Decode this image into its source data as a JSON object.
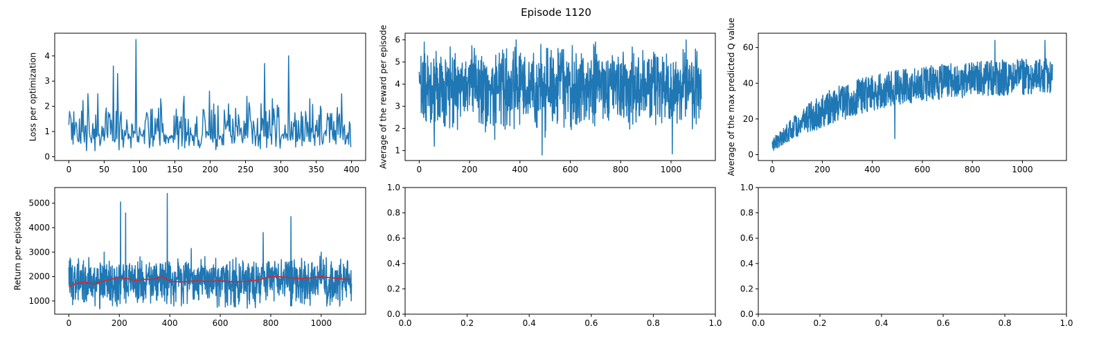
{
  "figure": {
    "suptitle": "Episode 1120",
    "colors": {
      "series": "#1f77b4",
      "average": "#d62728",
      "axes": "#000000",
      "background": "#ffffff"
    }
  },
  "chart_data": [
    {
      "type": "line",
      "title": "",
      "xlabel": "",
      "ylabel": "Loss per optimization",
      "xlim": [
        -20,
        420
      ],
      "ylim": [
        -0.15,
        4.9
      ],
      "xticks": [
        0,
        50,
        100,
        150,
        200,
        250,
        300,
        350,
        400
      ],
      "yticks": [
        0,
        1,
        2,
        3,
        4
      ],
      "grid": false,
      "series": [
        {
          "color": "#1f77b4",
          "x_range": [
            0,
            399
          ],
          "points": 400,
          "baseline": 0.9,
          "min": 0.15,
          "max": 2.3,
          "peaks": [
            [
              1,
              1.8
            ],
            [
              27,
              2.5
            ],
            [
              41,
              2.5
            ],
            [
              63,
              3.6
            ],
            [
              69,
              3.3
            ],
            [
              95,
              4.65
            ],
            [
              130,
              2.3
            ],
            [
              163,
              2.4
            ],
            [
              199,
              2.6
            ],
            [
              226,
              2.1
            ],
            [
              252,
              2.4
            ],
            [
              277,
              3.7
            ],
            [
              288,
              2.3
            ],
            [
              311,
              4.0
            ],
            [
              341,
              2.3
            ],
            [
              386,
              2.5
            ]
          ]
        }
      ]
    },
    {
      "type": "line",
      "title": "",
      "xlabel": "",
      "ylabel": "Average of the reward per episode",
      "xlim": [
        -56,
        1176
      ],
      "ylim": [
        0.55,
        6.3
      ],
      "xticks": [
        0,
        200,
        400,
        600,
        800,
        1000
      ],
      "yticks": [
        1,
        2,
        3,
        4,
        5,
        6
      ],
      "grid": false,
      "series": [
        {
          "color": "#1f77b4",
          "x_range": [
            0,
            1120
          ],
          "points": 1121,
          "baseline": 3.9,
          "min": 1.8,
          "max": 5.9,
          "peaks": [
            [
              20,
              5.9
            ],
            [
              60,
              1.2
            ],
            [
              300,
              1.5
            ],
            [
              385,
              6.0
            ],
            [
              488,
              0.8
            ],
            [
              500,
              1.6
            ],
            [
              700,
              5.9
            ],
            [
              1005,
              0.85
            ],
            [
              1060,
              6.0
            ]
          ]
        }
      ]
    },
    {
      "type": "line",
      "title": "",
      "xlabel": "",
      "ylabel": "Average of the max predicted Q value",
      "xlim": [
        -56,
        1176
      ],
      "ylim": [
        -3.3,
        68
      ],
      "xticks": [
        0,
        200,
        400,
        600,
        800,
        1000
      ],
      "yticks": [
        0,
        20,
        40,
        60
      ],
      "grid": false,
      "series": [
        {
          "color": "#1f77b4",
          "x_range": [
            0,
            1120
          ],
          "points": 1121,
          "trend": {
            "start": 5,
            "plateau": 45,
            "rate": 300
          },
          "spread": 10,
          "min": 0.5,
          "max": 64,
          "peaks": [
            [
              490,
              9
            ],
            [
              890,
              64
            ],
            [
              1090,
              64
            ]
          ]
        }
      ]
    },
    {
      "type": "line",
      "title": "",
      "xlabel": "",
      "ylabel": "Return per episode",
      "xlim": [
        -56,
        1176
      ],
      "ylim": [
        460,
        5640
      ],
      "xticks": [
        0,
        200,
        400,
        600,
        800,
        1000
      ],
      "yticks": [
        1000,
        2000,
        3000,
        4000,
        5000
      ],
      "grid": false,
      "series": [
        {
          "color": "#1f77b4",
          "x_range": [
            0,
            1120
          ],
          "points": 1121,
          "baseline": 1850,
          "min": 650,
          "max": 2900,
          "peaks": [
            [
              5,
              2750
            ],
            [
              140,
              3000
            ],
            [
              205,
              5050
            ],
            [
              225,
              4600
            ],
            [
              390,
              5400
            ],
            [
              485,
              3150
            ],
            [
              770,
              3800
            ],
            [
              880,
              4450
            ],
            [
              1000,
              3000
            ]
          ]
        },
        {
          "color": "#d62728",
          "x": [
            0,
            30,
            60,
            100,
            150,
            200,
            230,
            260,
            300,
            340,
            370,
            400,
            450,
            500,
            550,
            600,
            650,
            700,
            750,
            790,
            830,
            870,
            910,
            950,
            1000,
            1050,
            1100,
            1120
          ],
          "y": [
            1580,
            1720,
            1760,
            1700,
            1850,
            1960,
            1920,
            1840,
            1880,
            1890,
            2000,
            1800,
            1780,
            1820,
            1800,
            1820,
            1790,
            1800,
            1850,
            1980,
            2000,
            1960,
            1920,
            1940,
            1990,
            1940,
            1880,
            1880
          ]
        }
      ]
    },
    {
      "type": "line",
      "title": "",
      "xlabel": "",
      "ylabel": "",
      "xlim": [
        0,
        1
      ],
      "ylim": [
        0,
        1
      ],
      "xticks": [
        0.0,
        0.2,
        0.4,
        0.6,
        0.8,
        1.0
      ],
      "yticks": [
        0.0,
        0.2,
        0.4,
        0.6,
        0.8,
        1.0
      ],
      "xtick_labels": [
        "0.0",
        "0.2",
        "0.4",
        "0.6",
        "0.8",
        "1.0"
      ],
      "ytick_labels": [
        "0.0",
        "0.2",
        "0.4",
        "0.6",
        "0.8",
        "1.0"
      ],
      "grid": false,
      "series": []
    },
    {
      "type": "line",
      "title": "",
      "xlabel": "",
      "ylabel": "",
      "xlim": [
        0,
        1
      ],
      "ylim": [
        0,
        1
      ],
      "xticks": [
        0.0,
        0.2,
        0.4,
        0.6,
        0.8,
        1.0
      ],
      "yticks": [
        0.0,
        0.2,
        0.4,
        0.6,
        0.8,
        1.0
      ],
      "xtick_labels": [
        "0.0",
        "0.2",
        "0.4",
        "0.6",
        "0.8",
        "1.0"
      ],
      "ytick_labels": [
        "0.0",
        "0.2",
        "0.4",
        "0.6",
        "0.8",
        "1.0"
      ],
      "grid": false,
      "series": []
    }
  ]
}
